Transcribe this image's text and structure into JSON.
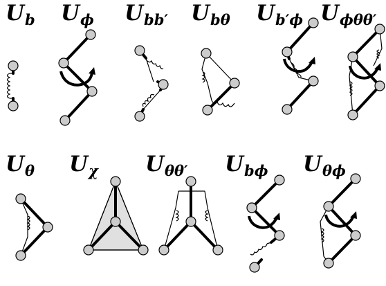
{
  "terms": [
    {
      "main": "U",
      "sub": "b"
    },
    {
      "main": "U",
      "sub": "ϕ"
    },
    {
      "main": "U",
      "sub": "bb′"
    },
    {
      "main": "U",
      "sub": "bθ"
    },
    {
      "main": "U",
      "sub": "b′ϕ"
    },
    {
      "main": "U",
      "sub": "ϕθθ′"
    },
    {
      "main": "U",
      "sub": "θ"
    },
    {
      "main": "U",
      "sub": "χ"
    },
    {
      "main": "U",
      "sub": "θθ′"
    },
    {
      "main": "U",
      "sub": "bϕ"
    },
    {
      "main": "U",
      "sub": "θϕ"
    }
  ],
  "colors": {
    "atom_fill": "#cccccc",
    "line": "#000000",
    "face": "#e0e0e0"
  }
}
